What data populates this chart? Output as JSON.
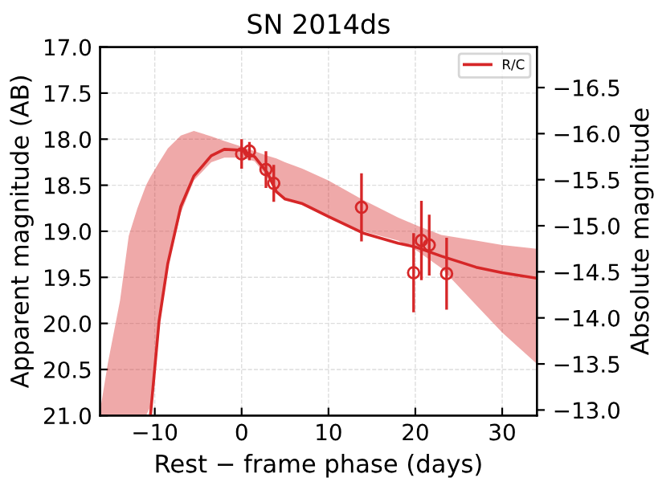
{
  "chart_data": {
    "type": "line",
    "title": "SN 2014ds",
    "xlabel": "Rest − frame phase (days)",
    "ylabel": "Apparent magnitude (AB)",
    "y2label": "Absolute magnitude",
    "xlim": [
      -16.3,
      34
    ],
    "xticks": [
      {
        "value": -10,
        "label": "−10"
      },
      0,
      10,
      20,
      30
    ],
    "ylim": [
      21.0,
      17.0
    ],
    "yticks": [
      {
        "value": 17,
        "label": "17.0"
      },
      {
        "value": 17.5,
        "label": "17.5"
      },
      {
        "value": 18,
        "label": "18.0"
      },
      {
        "value": 18.5,
        "label": "18.5"
      },
      {
        "value": 19,
        "label": "19.0"
      },
      {
        "value": 19.5,
        "label": "19.5"
      },
      {
        "value": 20,
        "label": "20.0"
      },
      {
        "value": 20.5,
        "label": "20.5"
      },
      {
        "value": 21,
        "label": "21.0"
      }
    ],
    "y2lim": [
      -12.94,
      -16.94
    ],
    "y2ticks": [
      {
        "value": -13,
        "label": "−13.0"
      },
      {
        "value": -13.5,
        "label": "−13.5"
      },
      {
        "value": -14,
        "label": "−14.0"
      },
      {
        "value": -14.5,
        "label": "−14.5"
      },
      {
        "value": -15,
        "label": "−15.0"
      },
      {
        "value": -15.5,
        "label": "−15.5"
      },
      {
        "value": -16,
        "label": "−16.0"
      },
      {
        "value": -16.5,
        "label": "−16.5"
      }
    ],
    "grid": true,
    "legend": "top right",
    "series": [
      {
        "name": "R/C",
        "color": "#d62728",
        "x": [
          -16.3,
          -15.4,
          -14,
          -13,
          -12,
          -11,
          -10.5,
          -9.5,
          -8.5,
          -7,
          -5.5,
          -3.5,
          -2,
          0,
          1.5,
          3,
          4,
          5,
          7,
          10,
          14,
          18,
          20,
          23,
          27,
          30,
          34
        ],
        "values": [
          null,
          null,
          null,
          null,
          null,
          null,
          21.0,
          19.97,
          19.35,
          18.73,
          18.4,
          18.18,
          18.11,
          18.12,
          18.19,
          18.37,
          18.57,
          18.65,
          18.7,
          18.84,
          19.02,
          19.13,
          19.17,
          19.27,
          19.39,
          19.45,
          19.51
        ],
        "upper": [
          20.95,
          20.43,
          19.75,
          19.05,
          18.75,
          18.5,
          18.41,
          18.25,
          18.1,
          17.96,
          17.91,
          17.97,
          18.02,
          18.08,
          18.13,
          18.18,
          18.21,
          18.25,
          18.32,
          18.45,
          18.66,
          18.85,
          18.93,
          19.04,
          19.1,
          19.15,
          19.19
        ],
        "lower": [
          21.0,
          21.0,
          21.0,
          21.0,
          21.0,
          21.0,
          20.9,
          20.0,
          19.38,
          18.8,
          18.45,
          18.25,
          18.2,
          18.2,
          18.24,
          18.42,
          18.58,
          18.64,
          18.71,
          18.85,
          19.0,
          19.1,
          19.2,
          19.4,
          19.8,
          20.1,
          20.44
        ]
      },
      {
        "type": "scatter",
        "marker": "circle",
        "color": "#d62728",
        "x": [
          0,
          0.9,
          2.8,
          3.7,
          13.8,
          19.8,
          20.7,
          21.6,
          23.6
        ],
        "values": [
          18.16,
          18.13,
          18.33,
          18.48,
          18.74,
          19.45,
          19.1,
          19.15,
          19.46
        ],
        "errors": [
          0.16,
          0.1,
          0.2,
          0.2,
          0.37,
          0.43,
          0.43,
          0.33,
          0.39
        ]
      }
    ]
  }
}
